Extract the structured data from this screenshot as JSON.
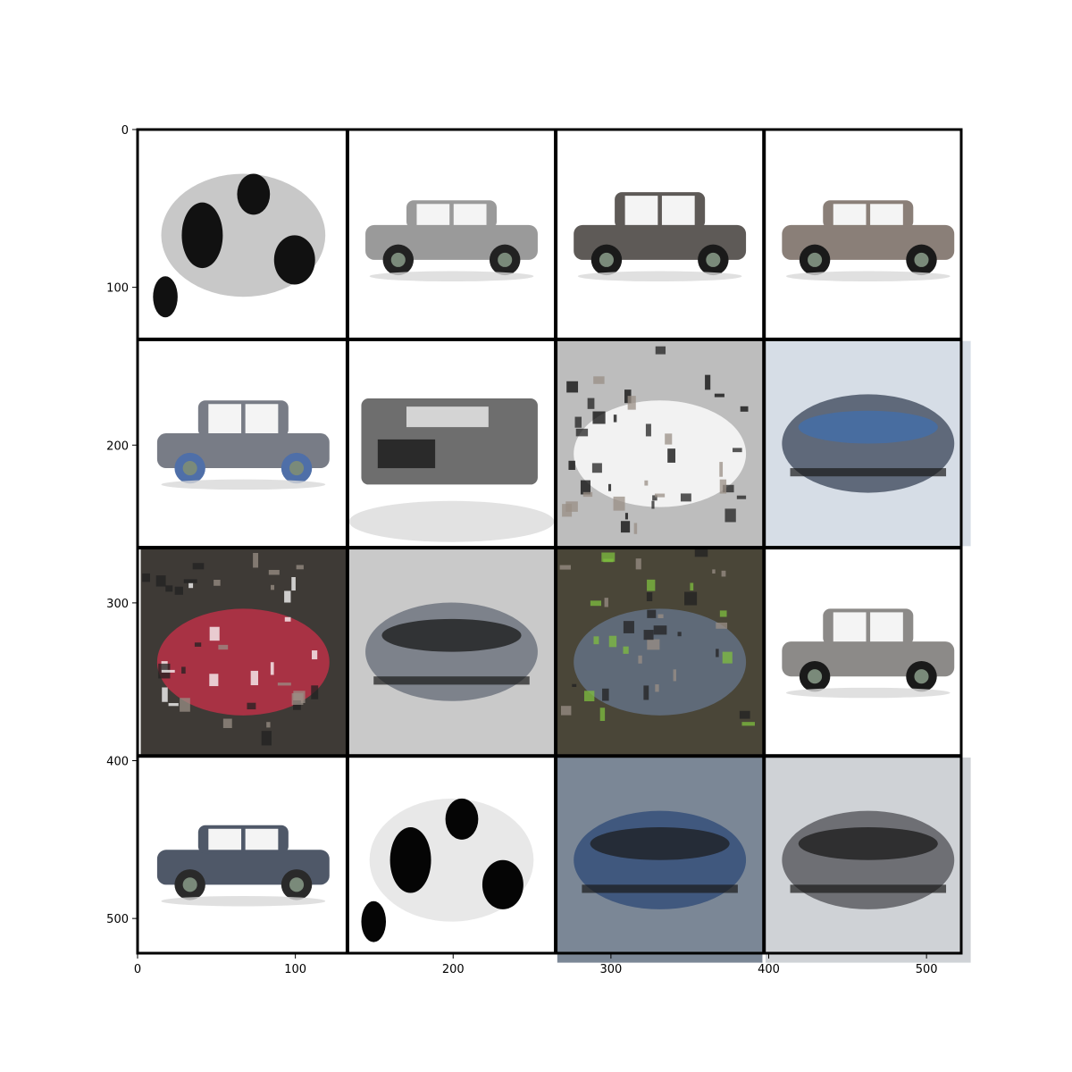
{
  "chart_data": {
    "type": "image",
    "title": "",
    "xlabel": "",
    "ylabel": "",
    "xlim": [
      0,
      522
    ],
    "ylim": [
      522,
      0
    ],
    "x_ticks": [
      0,
      100,
      200,
      300,
      400,
      500
    ],
    "y_ticks": [
      0,
      100,
      200,
      300,
      400,
      500
    ],
    "grid": {
      "rows": 4,
      "cols": 4,
      "cell_size": 130,
      "separator": 2,
      "separator_color": "#000000"
    },
    "tiles": [
      {
        "row": 0,
        "col": 0,
        "content": "washed-out grey blob on white",
        "bg": "#ffffff",
        "car": "#c8c8c8",
        "accent": "#111111",
        "kind": "blob"
      },
      {
        "row": 0,
        "col": 1,
        "content": "silver sedan, side view",
        "bg": "#ffffff",
        "car": "#9a9a9a",
        "accent": "#222222",
        "kind": "sedan"
      },
      {
        "row": 0,
        "col": 2,
        "content": "dark grey SUV, side view",
        "bg": "#ffffff",
        "car": "#5e5a57",
        "accent": "#1a1a1a",
        "kind": "suv"
      },
      {
        "row": 0,
        "col": 3,
        "content": "bronze-grey sedan, side view",
        "bg": "#ffffff",
        "car": "#8a7f78",
        "accent": "#1a1a1a",
        "kind": "sedan"
      },
      {
        "row": 1,
        "col": 0,
        "content": "blue-grey SUV, side view",
        "bg": "#ffffff",
        "car": "#787c86",
        "accent": "#4f6fa8",
        "kind": "suv"
      },
      {
        "row": 1,
        "col": 1,
        "content": "grey truck, front three-quarter",
        "bg": "#ffffff",
        "car": "#6e6e6e",
        "accent": "#2a2a2a",
        "kind": "truck"
      },
      {
        "row": 1,
        "col": 2,
        "content": "noisy black and white blob",
        "bg": "#bdbdbd",
        "car": "#f2f2f2",
        "accent": "#0a0a0a",
        "kind": "noise"
      },
      {
        "row": 1,
        "col": 3,
        "content": "blurry blue car on sky",
        "bg": "#d6dde6",
        "car": "#4a5566",
        "accent": "#3f6fb0",
        "kind": "blur"
      },
      {
        "row": 2,
        "col": 0,
        "content": "noisy dark scene with red car",
        "bg": "#3e3a36",
        "car": "#a83244",
        "accent": "#ffffff",
        "kind": "noise"
      },
      {
        "row": 2,
        "col": 1,
        "content": "blurry grey car with dark blotches",
        "bg": "#c9c9c9",
        "car": "#707580",
        "accent": "#111111",
        "kind": "blur"
      },
      {
        "row": 2,
        "col": 2,
        "content": "dark noisy scene with green tint",
        "bg": "#4a4638",
        "car": "#5f6a78",
        "accent": "#7fbf3f",
        "kind": "noise"
      },
      {
        "row": 2,
        "col": 3,
        "content": "silver SUV, side view",
        "bg": "#ffffff",
        "car": "#8c8a88",
        "accent": "#1a1a1a",
        "kind": "suv"
      },
      {
        "row": 3,
        "col": 0,
        "content": "dark blue sedan, side view",
        "bg": "#ffffff",
        "car": "#4f5868",
        "accent": "#2a2a2a",
        "kind": "sedan"
      },
      {
        "row": 3,
        "col": 1,
        "content": "black and white blotchy vehicle",
        "bg": "#ffffff",
        "car": "#e8e8e8",
        "accent": "#050505",
        "kind": "blob"
      },
      {
        "row": 3,
        "col": 2,
        "content": "blurry blue car, dark tones",
        "bg": "#7b8796",
        "car": "#36507a",
        "accent": "#1a1a1a",
        "kind": "blur"
      },
      {
        "row": 3,
        "col": 3,
        "content": "blurry grey car with noise",
        "bg": "#cfd2d6",
        "car": "#5d5e63",
        "accent": "#141414",
        "kind": "blur"
      }
    ]
  }
}
